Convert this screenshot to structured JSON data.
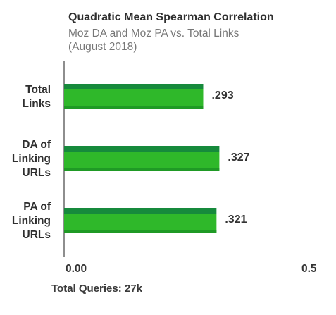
{
  "chart_data": {
    "type": "bar",
    "orientation": "horizontal",
    "title": "Quadratic Mean Spearman Correlation",
    "subtitle_lines": [
      "Moz DA and Moz PA vs. Total Links",
      "(August 2018)"
    ],
    "categories": [
      [
        "Total",
        "Links"
      ],
      [
        "DA of",
        "Linking",
        "URLs"
      ],
      [
        "PA of",
        "Linking",
        "URLs"
      ]
    ],
    "values": [
      0.293,
      0.327,
      0.321
    ],
    "value_labels": [
      ".293",
      ".327",
      ".321"
    ],
    "xlim": [
      0,
      0.5
    ],
    "x_tick_labels": [
      "0.00",
      "0.5"
    ],
    "xlabel": "",
    "ylabel": "",
    "grid": false,
    "footnote": "Total Queries: 27k",
    "colors": {
      "bar_top": "#168a3c",
      "bar_main": "#2fb82a",
      "bar_bottom_shade": "#1f9a25",
      "axis": "#444444"
    }
  }
}
